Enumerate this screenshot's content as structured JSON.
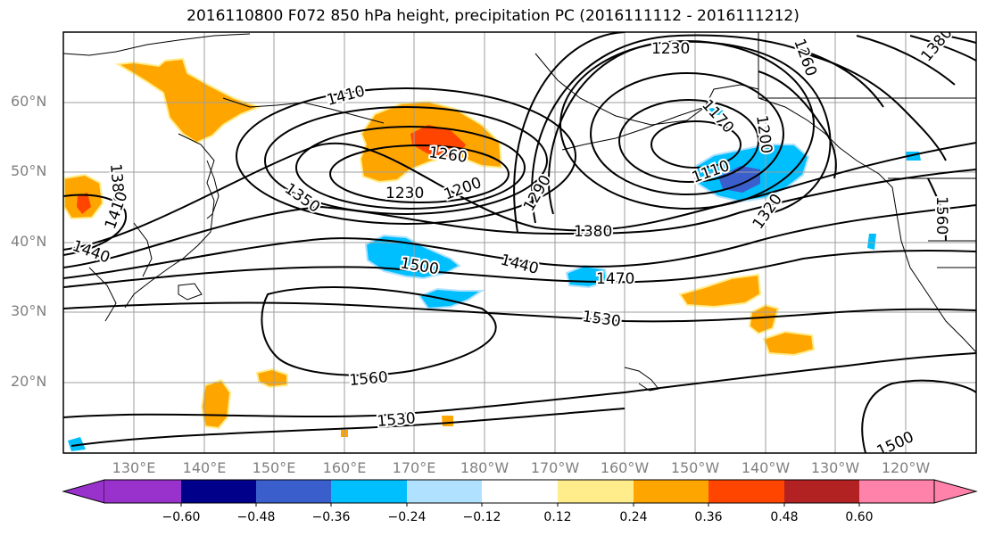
{
  "title": "2016110800 F072 850 hPa height, precipitation PC (2016111112 - 2016111212)",
  "lat_labels": [
    "60°N",
    "50°N",
    "40°N",
    "30°N",
    "20°N"
  ],
  "lon_labels": [
    "130°E",
    "140°E",
    "150°E",
    "160°E",
    "170°E",
    "180°W",
    "170°W",
    "160°W",
    "150°W",
    "140°W",
    "130°W",
    "120°W"
  ],
  "contour_labels": [
    "1230",
    "1260",
    "1290",
    "1320",
    "1350",
    "1380",
    "1410",
    "1440",
    "1470",
    "1500",
    "1530",
    "1560",
    "1170",
    "1110",
    "1200",
    "1380",
    "1410",
    "1440",
    "1500",
    "1530",
    "1560",
    "1260",
    "1380",
    "1200",
    "1230",
    "1560",
    "1500"
  ],
  "colorbar": {
    "ticks": [
      "−0.60",
      "−0.48",
      "−0.36",
      "−0.24",
      "−0.12",
      "0.12",
      "0.24",
      "0.36",
      "0.48",
      "0.60"
    ],
    "colors": [
      "#9932cc",
      "#00008b",
      "#3a5fcd",
      "#00bfff",
      "#b0e2ff",
      "#ffffff",
      "#ffec8b",
      "#ffa500",
      "#ff4500",
      "#b22222",
      "#ff82ab"
    ]
  }
}
